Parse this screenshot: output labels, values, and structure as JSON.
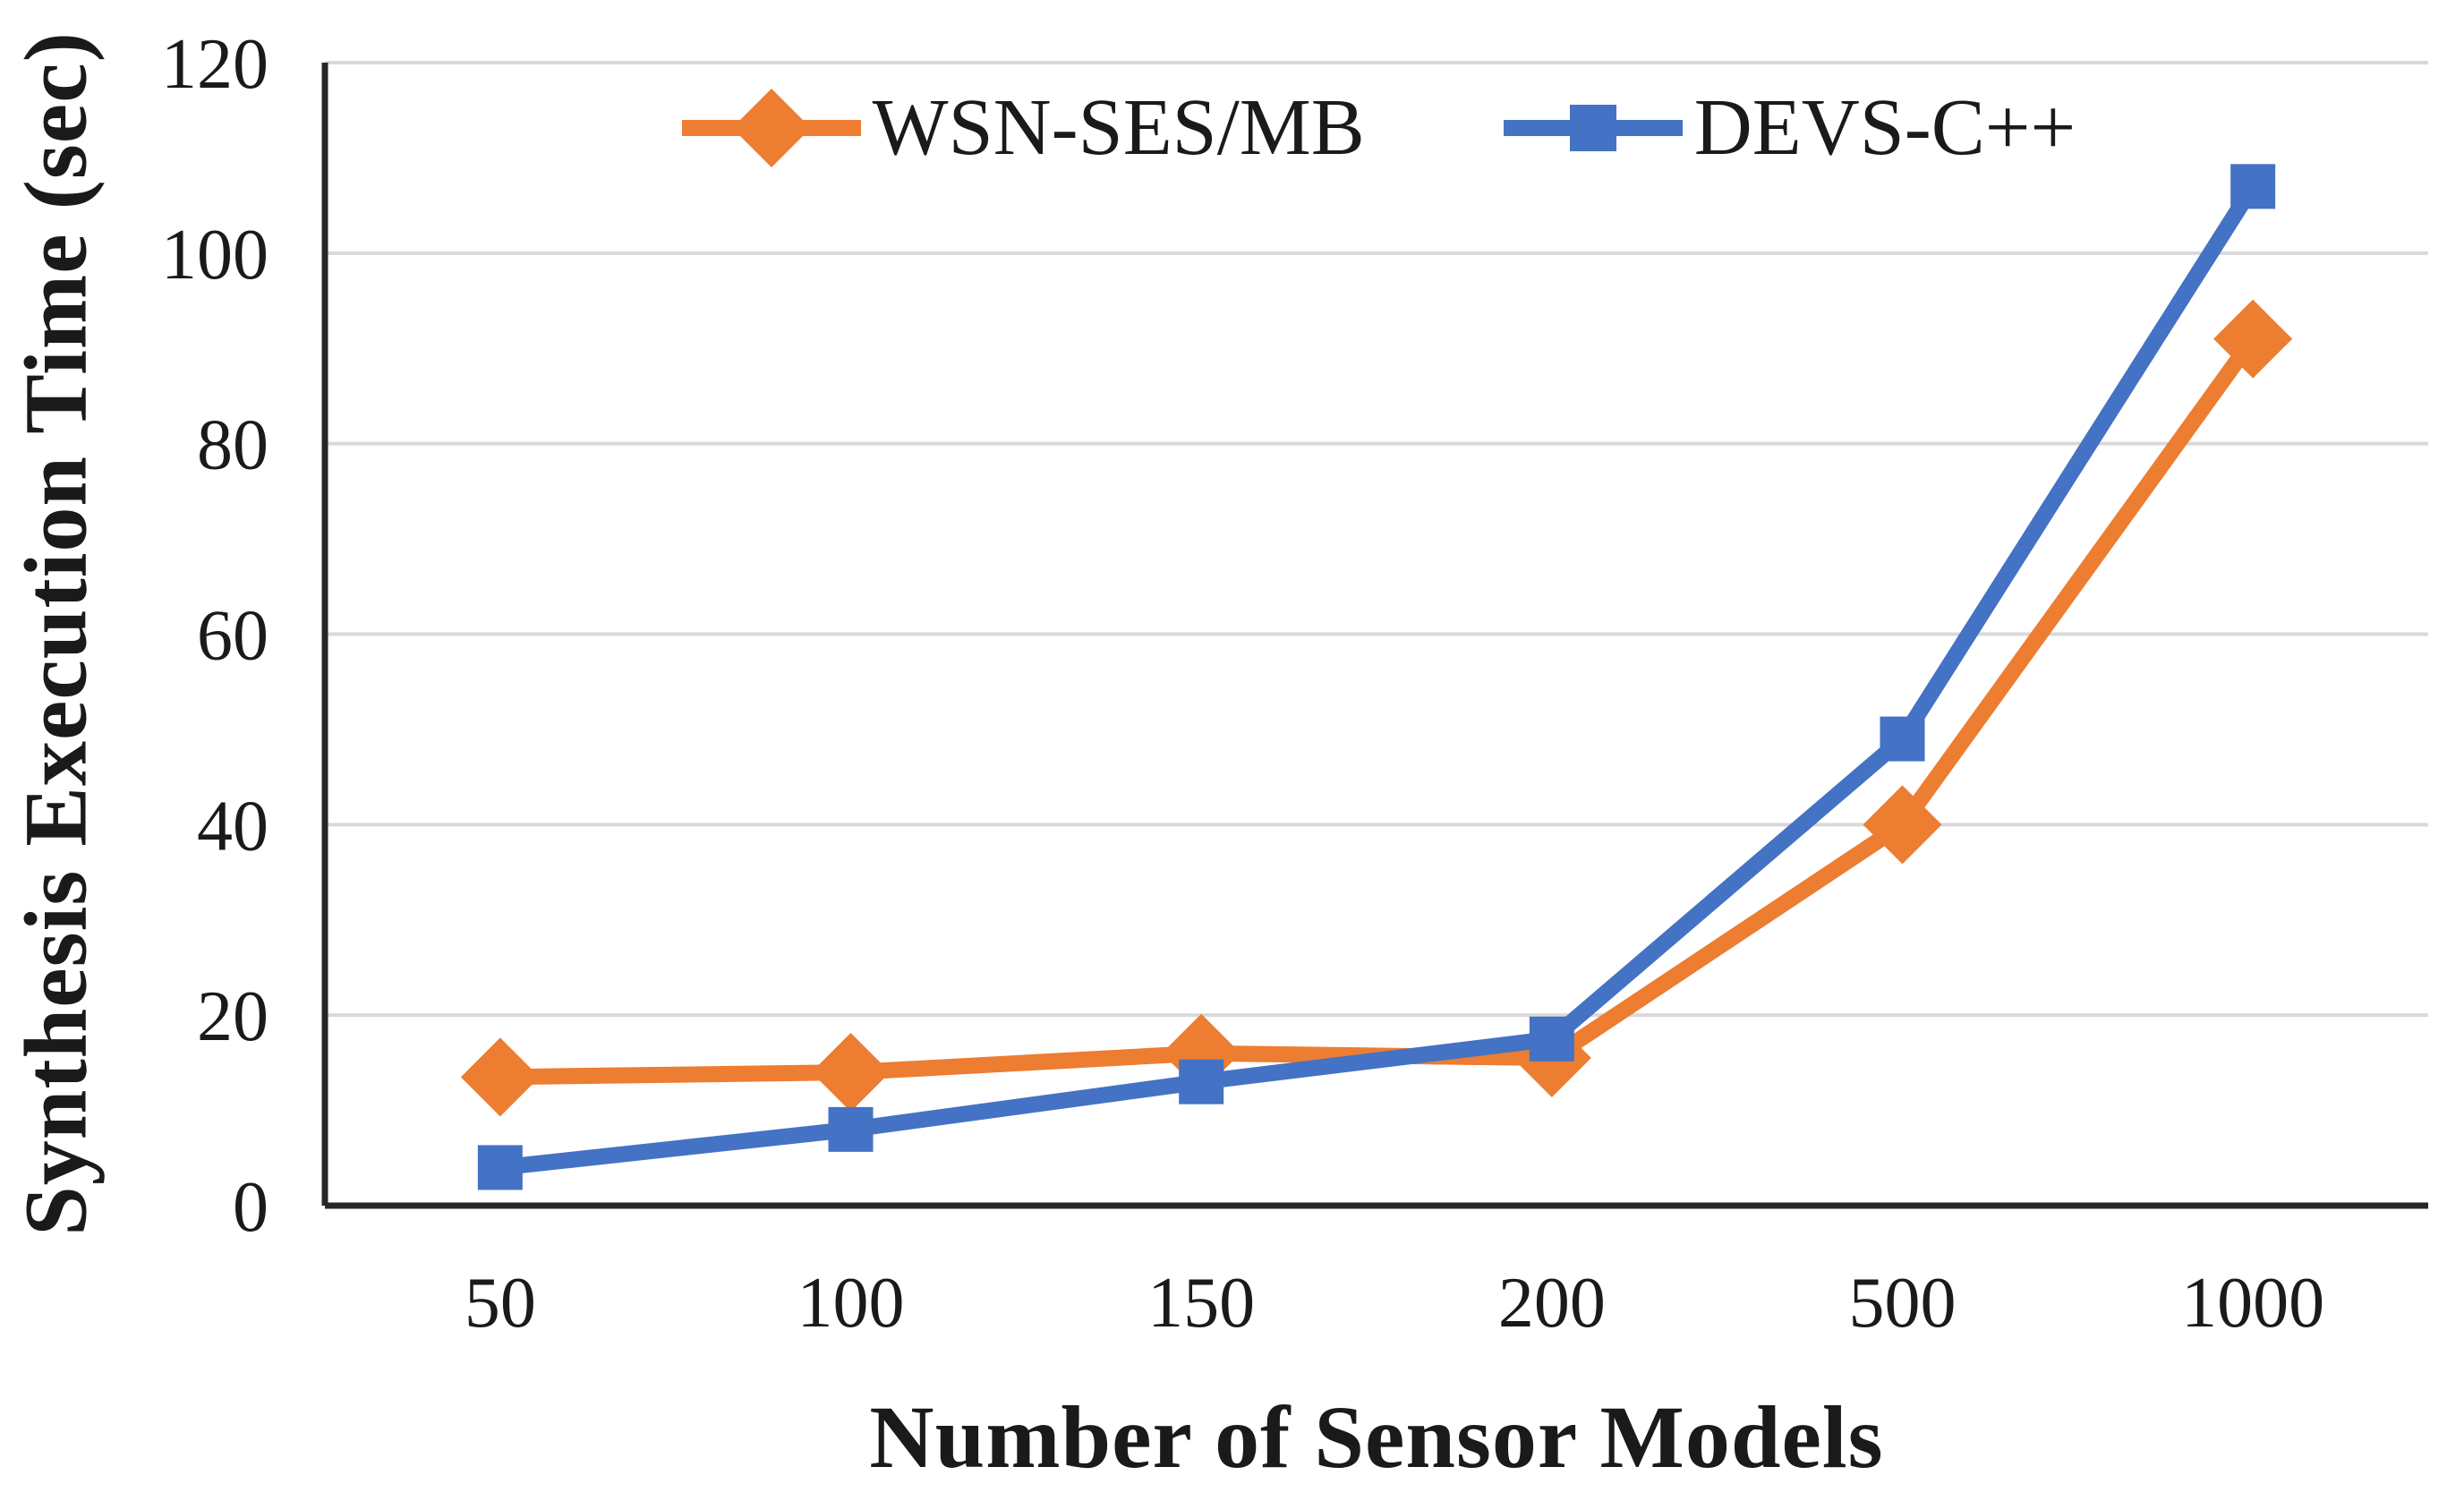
{
  "chart_data": {
    "type": "line",
    "title": "",
    "xlabel": "Number of Sensor Models",
    "ylabel": "Synthesis Execution Time (sec)",
    "categories": [
      "50",
      "100",
      "150",
      "200",
      "500",
      "1000"
    ],
    "y_ticks": [
      "0",
      "20",
      "40",
      "60",
      "80",
      "100",
      "120"
    ],
    "ylim": [
      0,
      120
    ],
    "grid": "horizontal",
    "legend_position": "top",
    "series": [
      {
        "name": "WSN-SES/MB",
        "color": "#ED7D31",
        "marker": "diamond",
        "values": [
          13.5,
          14,
          16,
          15.5,
          40,
          91
        ]
      },
      {
        "name": "DEVS-C++",
        "color": "#4472C4",
        "marker": "square",
        "values": [
          4,
          8,
          13,
          17.5,
          49,
          107
        ]
      }
    ],
    "colors": {
      "gridline": "#D9D9D9",
      "axis": "#262626",
      "text": "#1A1A1A"
    }
  }
}
